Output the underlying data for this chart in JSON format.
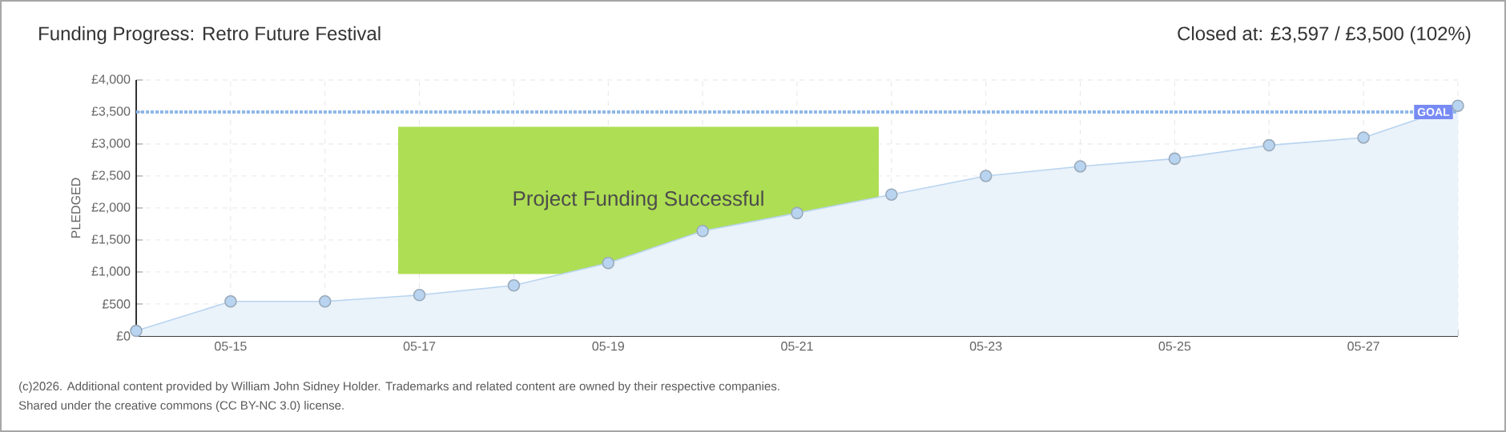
{
  "chart_data": {
    "type": "area",
    "title": "Funding Progress: Retro Future Festival",
    "subtitle": "Closed at:  £3,597 /  £3,500 (102%)",
    "ylabel": "PLEDGED",
    "categories": [
      null,
      "05-15",
      null,
      "05-17",
      null,
      "05-19",
      null,
      "05-21",
      null,
      "05-23",
      null,
      "05-25",
      null,
      "05-27",
      null
    ],
    "series": [
      {
        "color": "#b8d4f0",
        "values": [
          80,
          540,
          540,
          640,
          790,
          1140,
          1640,
          1920,
          2210,
          2500,
          2650,
          2770,
          2980,
          3100,
          3597
        ]
      }
    ],
    "ylim": [
      0,
      4000
    ],
    "yticks": [
      {
        "value": 0,
        "label": "£0"
      },
      {
        "value": 500,
        "label": "£500"
      },
      {
        "value": 1000,
        "label": "£1,000"
      },
      {
        "value": 1500,
        "label": "£1,500"
      },
      {
        "value": 2000,
        "label": "£2,000"
      },
      {
        "value": 2500,
        "label": "£2,500"
      },
      {
        "value": 3000,
        "label": "£3,000"
      },
      {
        "value": 3500,
        "label": "£3,500"
      },
      {
        "value": 4000,
        "label": "£4,000"
      }
    ],
    "grid": true,
    "marker": "circle",
    "ref_lines": [
      {
        "axis": "y",
        "value": 3500,
        "label": "GOAL",
        "color": "#8fb8e8",
        "line_style": "dotted"
      }
    ],
    "annotations": [
      "Project Funding Successful",
      "(c)2026. Additional content provided by William John Sidney Holder. Trademarks and related content are owned by their respective companies.",
      "Shared under the creative commons (CC BY-NC 3.0) license."
    ]
  }
}
